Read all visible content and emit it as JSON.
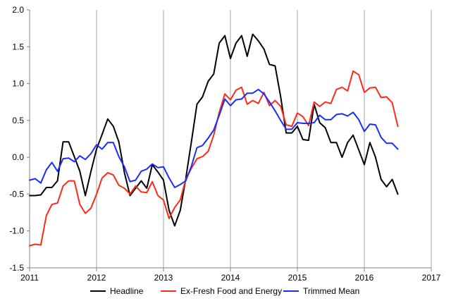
{
  "chart_data": {
    "type": "line",
    "title": "",
    "xlabel": "",
    "ylabel": "",
    "xlim": [
      2011,
      2017
    ],
    "ylim": [
      -1.5,
      2.0
    ],
    "xticks": [
      "2011",
      "2012",
      "2013",
      "2014",
      "2015",
      "2016",
      "2017"
    ],
    "yticks": [
      "2.0",
      "1.5",
      "1.0",
      "0.5",
      "0.0",
      "-0.5",
      "-1.0",
      "-1.5"
    ],
    "grid": "vertical",
    "legend": "bottom",
    "x": [
      2011.0,
      2011.083,
      2011.167,
      2011.25,
      2011.333,
      2011.417,
      2011.5,
      2011.583,
      2011.667,
      2011.75,
      2011.833,
      2011.917,
      2012.0,
      2012.083,
      2012.167,
      2012.25,
      2012.333,
      2012.417,
      2012.5,
      2012.583,
      2012.667,
      2012.75,
      2012.833,
      2012.917,
      2013.0,
      2013.083,
      2013.167,
      2013.25,
      2013.333,
      2013.417,
      2013.5,
      2013.583,
      2013.667,
      2013.75,
      2013.833,
      2013.917,
      2014.0,
      2014.083,
      2014.167,
      2014.25,
      2014.333,
      2014.417,
      2014.5,
      2014.583,
      2014.667,
      2014.75,
      2014.833,
      2014.917,
      2015.0,
      2015.083,
      2015.167,
      2015.25,
      2015.333,
      2015.417,
      2015.5,
      2015.583,
      2015.667,
      2015.75,
      2015.833,
      2015.917,
      2016.0,
      2016.083,
      2016.167,
      2016.25,
      2016.333,
      2016.417,
      2016.5
    ],
    "series": [
      {
        "name": "Headline",
        "color": "#000000",
        "values": [
          -0.52,
          -0.52,
          -0.51,
          -0.41,
          -0.41,
          -0.32,
          0.21,
          0.21,
          0.01,
          -0.19,
          -0.52,
          -0.19,
          0.11,
          0.31,
          0.52,
          0.42,
          0.21,
          -0.21,
          -0.52,
          -0.42,
          -0.32,
          -0.42,
          -0.1,
          -0.2,
          -0.31,
          -0.72,
          -0.93,
          -0.72,
          -0.29,
          0.21,
          0.72,
          0.82,
          1.03,
          1.13,
          1.55,
          1.65,
          1.34,
          1.55,
          1.65,
          1.37,
          1.67,
          1.58,
          1.47,
          1.26,
          1.24,
          0.82,
          0.33,
          0.33,
          0.42,
          0.24,
          0.23,
          0.72,
          0.47,
          0.4,
          0.2,
          0.2,
          0.0,
          0.2,
          0.3,
          0.1,
          -0.1,
          0.2,
          0.0,
          -0.3,
          -0.4,
          -0.3,
          -0.5
        ]
      },
      {
        "name": "Ex-Fresh Food and Energy",
        "color": "#ff2a1a",
        "values": [
          -1.2,
          -1.18,
          -1.19,
          -0.79,
          -0.64,
          -0.62,
          -0.39,
          -0.32,
          -0.32,
          -0.64,
          -0.76,
          -0.69,
          -0.5,
          -0.28,
          -0.21,
          -0.24,
          -0.38,
          -0.42,
          -0.5,
          -0.39,
          -0.47,
          -0.48,
          -0.33,
          -0.52,
          -0.58,
          -0.83,
          -0.68,
          -0.58,
          -0.3,
          -0.15,
          -0.02,
          0.01,
          0.08,
          0.3,
          0.61,
          0.86,
          0.78,
          0.91,
          0.95,
          0.72,
          0.77,
          0.73,
          0.88,
          0.7,
          0.77,
          0.69,
          0.44,
          0.42,
          0.6,
          0.55,
          0.43,
          0.75,
          0.69,
          0.75,
          0.73,
          0.92,
          0.95,
          0.9,
          1.17,
          1.12,
          0.88,
          0.94,
          0.95,
          0.81,
          0.82,
          0.74,
          0.42
        ]
      },
      {
        "name": "Trimmed Mean",
        "color": "#1a2cff",
        "values": [
          -0.31,
          -0.29,
          -0.35,
          -0.17,
          -0.07,
          -0.19,
          -0.02,
          -0.01,
          -0.06,
          0.02,
          -0.03,
          0.05,
          0.17,
          0.11,
          0.2,
          0.2,
          0.01,
          -0.13,
          -0.33,
          -0.31,
          -0.19,
          -0.16,
          -0.09,
          -0.14,
          -0.13,
          -0.28,
          -0.41,
          -0.37,
          -0.32,
          -0.12,
          0.13,
          0.16,
          0.26,
          0.37,
          0.57,
          0.79,
          0.7,
          0.78,
          0.79,
          0.87,
          0.87,
          0.92,
          0.86,
          0.75,
          0.63,
          0.5,
          0.38,
          0.38,
          0.47,
          0.46,
          0.46,
          0.47,
          0.57,
          0.51,
          0.51,
          0.58,
          0.59,
          0.56,
          0.61,
          0.51,
          0.35,
          0.45,
          0.44,
          0.27,
          0.19,
          0.19,
          0.11
        ]
      }
    ]
  }
}
